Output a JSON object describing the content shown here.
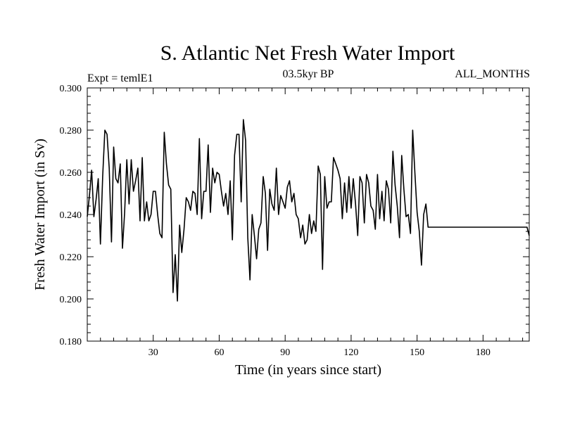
{
  "chart_data": {
    "type": "line",
    "title": "S. Atlantic Net Fresh Water Import",
    "subtitle_left": "Expt = temlE1",
    "subtitle_center": "03.5kyr BP",
    "subtitle_right": "ALL_MONTHS",
    "xlabel": "Time (in years since start)",
    "ylabel": "Fresh Water Import (in Sv)",
    "xlim": [
      0,
      201
    ],
    "ylim": [
      0.18,
      0.3
    ],
    "x_ticks": [
      30,
      60,
      90,
      120,
      150,
      180
    ],
    "y_ticks": [
      0.18,
      0.2,
      0.22,
      0.24,
      0.26,
      0.28,
      0.3
    ],
    "x_tick_labels": [
      "30",
      "60",
      "90",
      "120",
      "150",
      "180"
    ],
    "y_tick_labels": [
      "0.180",
      "0.200",
      "0.220",
      "0.240",
      "0.260",
      "0.280",
      "0.300"
    ],
    "series": [
      {
        "name": "fresh water import",
        "x": [
          0,
          1,
          2,
          3,
          4,
          5,
          6,
          7,
          8,
          9,
          10,
          11,
          12,
          13,
          14,
          15,
          16,
          17,
          18,
          19,
          20,
          21,
          22,
          23,
          24,
          25,
          26,
          27,
          28,
          29,
          30,
          31,
          32,
          33,
          34,
          35,
          36,
          37,
          38,
          39,
          40,
          41,
          42,
          43,
          44,
          45,
          46,
          47,
          48,
          49,
          50,
          51,
          52,
          53,
          54,
          55,
          56,
          57,
          58,
          59,
          60,
          61,
          62,
          63,
          64,
          65,
          66,
          67,
          68,
          69,
          70,
          71,
          72,
          73,
          74,
          75,
          76,
          77,
          78,
          79,
          80,
          81,
          82,
          83,
          84,
          85,
          86,
          87,
          88,
          89,
          90,
          91,
          92,
          93,
          94,
          95,
          96,
          97,
          98,
          99,
          100,
          101,
          102,
          103,
          104,
          105,
          106,
          107,
          108,
          109,
          110,
          111,
          112,
          113,
          114,
          115,
          116,
          117,
          118,
          119,
          120,
          121,
          122,
          123,
          124,
          125,
          126,
          127,
          128,
          129,
          130,
          131,
          132,
          133,
          134,
          135,
          136,
          137,
          138,
          139,
          140,
          141,
          142,
          143,
          144,
          145,
          146,
          147,
          148,
          149,
          150,
          151,
          152,
          153,
          154,
          155,
          200,
          201
        ],
        "y": [
          0.239,
          0.249,
          0.261,
          0.239,
          0.247,
          0.257,
          0.226,
          0.258,
          0.28,
          0.278,
          0.262,
          0.227,
          0.272,
          0.257,
          0.255,
          0.264,
          0.224,
          0.241,
          0.266,
          0.245,
          0.266,
          0.251,
          0.256,
          0.262,
          0.237,
          0.267,
          0.237,
          0.246,
          0.237,
          0.24,
          0.251,
          0.251,
          0.24,
          0.231,
          0.229,
          0.279,
          0.264,
          0.254,
          0.252,
          0.203,
          0.221,
          0.199,
          0.235,
          0.222,
          0.233,
          0.248,
          0.246,
          0.242,
          0.251,
          0.25,
          0.24,
          0.276,
          0.238,
          0.251,
          0.251,
          0.273,
          0.241,
          0.262,
          0.255,
          0.26,
          0.259,
          0.251,
          0.244,
          0.25,
          0.24,
          0.256,
          0.228,
          0.268,
          0.278,
          0.278,
          0.246,
          0.285,
          0.275,
          0.229,
          0.209,
          0.24,
          0.23,
          0.219,
          0.233,
          0.236,
          0.258,
          0.25,
          0.223,
          0.252,
          0.245,
          0.242,
          0.262,
          0.24,
          0.249,
          0.246,
          0.243,
          0.253,
          0.256,
          0.246,
          0.25,
          0.24,
          0.238,
          0.229,
          0.235,
          0.226,
          0.228,
          0.24,
          0.231,
          0.237,
          0.232,
          0.263,
          0.259,
          0.214,
          0.258,
          0.243,
          0.246,
          0.246,
          0.267,
          0.264,
          0.261,
          0.257,
          0.238,
          0.255,
          0.241,
          0.258,
          0.243,
          0.257,
          0.245,
          0.23,
          0.258,
          0.255,
          0.236,
          0.259,
          0.255,
          0.244,
          0.242,
          0.233,
          0.259,
          0.238,
          0.251,
          0.237,
          0.256,
          0.252,
          0.236,
          0.27,
          0.254,
          0.244,
          0.229,
          0.268,
          0.252,
          0.239,
          0.24,
          0.231,
          0.28,
          0.26,
          0.241,
          0.232,
          0.216,
          0.24,
          0.245,
          0.234,
          0.234,
          0.23
        ]
      }
    ]
  }
}
